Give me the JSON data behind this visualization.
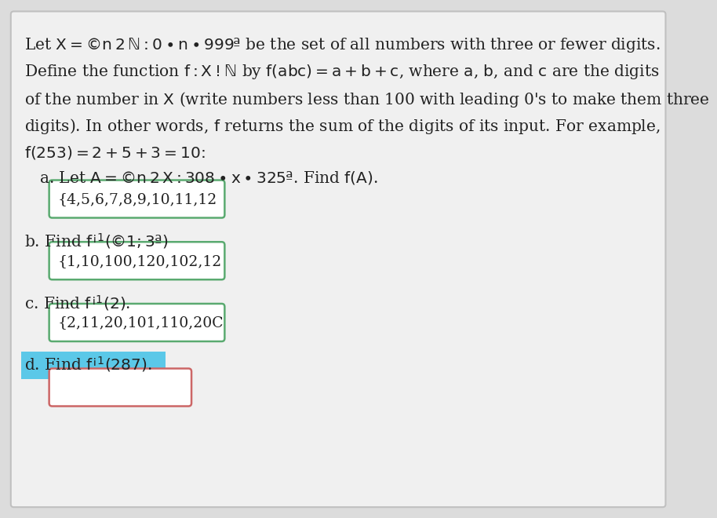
{
  "bg_color": "#dcdcdc",
  "inner_bg_color": "#f0f0f0",
  "text_color": "#222222",
  "box_border_color_green": "#5aaa70",
  "box_border_color_red": "#cc6666",
  "highlight_color": "#5bc8e8",
  "figsize": [
    9.02,
    6.67
  ],
  "dpi": 100,
  "para_lines": [
    "Let $X = \\{n \\in \\mathbb{N} : 0 \\leq n \\leq 999\\}$ be the set of all numbers with three or fewer digits.",
    "Define the function $f : X \\rightarrow \\mathbb{N}$ by $f(abc) = a + b + c$, where $a$, $b$, and $c$ are the digits",
    "of the number in $X$ (write numbers less than 100 with leading 0's to make them three",
    "digits). In other words, $f$ returns the sum of the digits of its input. For example,",
    "$f(253) = 2 + 5 + 3 = 10.$"
  ],
  "part_a_label": "   a. Let $A = \\{n \\in X : 308 \\leq x \\leq 325\\}$. Find $f(A)$.",
  "part_a_answer": "{4,5,6,7,8,9,10,11,12",
  "part_b_label": "b. Find $f^{-1}(\\{1, 3\\})$",
  "part_b_answer": "{1,10,100,120,102,12",
  "part_c_label": "c. Find $f^{-1}(2)$.",
  "part_c_answer": "{2,11,20,101,110,20C",
  "part_d_label": "d. Find $f^{-1}(287)$.",
  "part_d_answer": ""
}
